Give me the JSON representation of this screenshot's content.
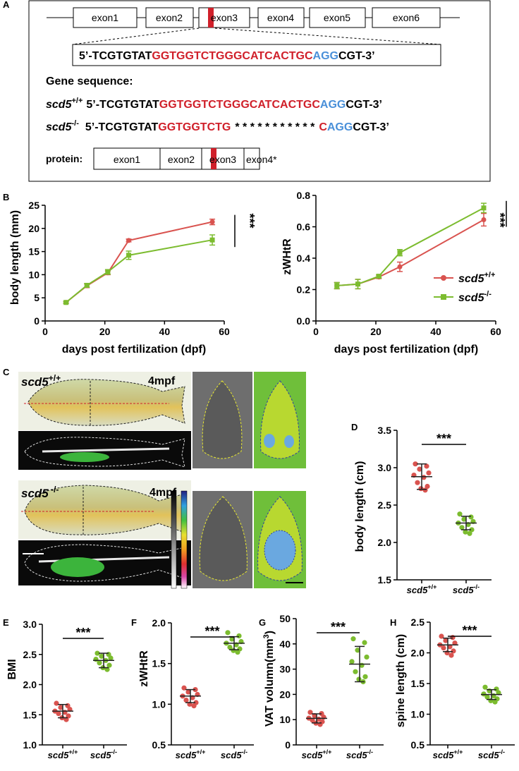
{
  "colors": {
    "wt": "#d9534f",
    "ko": "#7cbc2f",
    "guide_red": "#d0202a",
    "pam_blue": "#4a90d9",
    "exon3_mark": "#d0202a"
  },
  "panelA": {
    "label": "A",
    "exons": [
      "exon1",
      "exon2",
      "exon3",
      "exon4",
      "exon5",
      "exon6"
    ],
    "top_seq": {
      "prefix": "5’-TCGTGTAT",
      "red": "GGTGGTCTGGGCATCACTGC",
      "blue": "AGG",
      "suffix": "CGT-3’"
    },
    "gene_seq_title": "Gene sequence:",
    "wt_label": "scd5",
    "wt_sup": "+/+",
    "ko_label": "scd5",
    "ko_sup": "-/-",
    "wt_seq": {
      "prefix": "5’-TCGTGTAT",
      "red": "GGTGGTCTGGGCATCACTGC",
      "blue": "AGG",
      "suffix": "CGT-3’"
    },
    "ko_seq": {
      "prefix": "5’-TCGTGTAT",
      "red": "GGTGGTCTG",
      "gap": "* * * * * * * * * * *",
      "red2": "C",
      "blue": "AGG",
      "suffix": "CGT-3’"
    },
    "protein_label": "protein:",
    "protein_exons": [
      "exon1",
      "exon2",
      "exon3",
      "exon4*"
    ]
  },
  "panelC": {
    "label": "C",
    "wt_title": "scd5",
    "wt_sup": "+/+",
    "ko_title": "scd5",
    "ko_sup": " -/-",
    "age_wt": "4mpf",
    "age_ko": "4mpf"
  },
  "chart_data": [
    {
      "panel": "B-left",
      "label": "B",
      "type": "line",
      "xlabel": "days post fertilization (dpf)",
      "ylabel": "body length (mm)",
      "xlim": [
        0,
        60
      ],
      "ylim": [
        0,
        25
      ],
      "xticks": [
        0,
        20,
        40,
        60
      ],
      "yticks": [
        0,
        5,
        10,
        15,
        20,
        25
      ],
      "x": [
        7,
        14,
        21,
        28,
        56
      ],
      "series": [
        {
          "key": "wt",
          "values": [
            4.0,
            7.6,
            10.4,
            17.4,
            21.4
          ],
          "err": [
            0.2,
            0.4,
            0.4,
            0.3,
            0.6
          ]
        },
        {
          "key": "ko",
          "values": [
            4.0,
            7.7,
            10.6,
            14.2,
            17.5
          ],
          "err": [
            0.2,
            0.4,
            0.5,
            0.9,
            1.1
          ]
        }
      ],
      "significance": "***"
    },
    {
      "panel": "B-right",
      "type": "line",
      "xlabel": "days post fertilization (dpf)",
      "ylabel": "zWHtR",
      "xlim": [
        0,
        60
      ],
      "ylim": [
        0.0,
        0.8
      ],
      "xticks": [
        0,
        20,
        40,
        60
      ],
      "yticks": [
        "0.0",
        "0.2",
        "0.4",
        "0.6",
        "0.8"
      ],
      "x": [
        7,
        14,
        21,
        28,
        56
      ],
      "series": [
        {
          "key": "wt",
          "name": "scd5",
          "sup": "+/+",
          "values": [
            0.225,
            0.235,
            0.28,
            0.345,
            0.645
          ],
          "err": [
            0.02,
            0.03,
            0.01,
            0.03,
            0.04
          ]
        },
        {
          "key": "ko",
          "name": "scd5",
          "sup": "-/-",
          "values": [
            0.225,
            0.235,
            0.285,
            0.435,
            0.72
          ],
          "err": [
            0.02,
            0.03,
            0.01,
            0.02,
            0.03
          ]
        }
      ],
      "legend": "right",
      "significance": "***"
    },
    {
      "panel": "D",
      "label": "D",
      "type": "scatter",
      "ylabel": "body length (cm)",
      "ylim": [
        1.5,
        3.5
      ],
      "yticks": [
        "1.5",
        "2.0",
        "2.5",
        "3.0",
        "3.5"
      ],
      "categories": [
        {
          "name": "scd5",
          "sup": "+/+"
        },
        {
          "name": "scd5",
          "sup": "-/-"
        }
      ],
      "groups": [
        {
          "key": "wt",
          "mean": 2.88,
          "sd": 0.17,
          "points": [
            3.05,
            3.02,
            2.98,
            2.93,
            2.9,
            2.87,
            2.8,
            2.75,
            2.72,
            2.7
          ]
        },
        {
          "key": "ko",
          "mean": 2.26,
          "sd": 0.09,
          "points": [
            2.38,
            2.34,
            2.31,
            2.28,
            2.26,
            2.24,
            2.2,
            2.17,
            2.14,
            2.12
          ]
        }
      ],
      "significance": "***"
    },
    {
      "panel": "E",
      "label": "E",
      "type": "scatter",
      "ylabel": "BMI",
      "ylim": [
        1.0,
        3.0
      ],
      "yticks": [
        "1.0",
        "1.5",
        "2.0",
        "2.5",
        "3.0"
      ],
      "categories": [
        {
          "name": "scd5",
          "sup": "+/+"
        },
        {
          "name": "scd5",
          "sup": "-/-"
        }
      ],
      "groups": [
        {
          "key": "wt",
          "mean": 1.56,
          "sd": 0.11,
          "points": [
            1.69,
            1.65,
            1.62,
            1.59,
            1.56,
            1.54,
            1.52,
            1.48,
            1.45,
            1.42
          ]
        },
        {
          "key": "ko",
          "mean": 2.4,
          "sd": 0.12,
          "points": [
            2.52,
            2.5,
            2.47,
            2.44,
            2.42,
            2.4,
            2.36,
            2.32,
            2.28,
            2.25
          ]
        }
      ],
      "significance": "***"
    },
    {
      "panel": "F",
      "label": "F",
      "type": "scatter",
      "ylabel": "zWHtR",
      "ylim": [
        0.5,
        2.0
      ],
      "yticks": [
        "0.5",
        "1.0",
        "1.5",
        "2.0"
      ],
      "categories": [
        {
          "name": "scd5",
          "sup": "+/+"
        },
        {
          "name": "scd5",
          "sup": "-/-"
        }
      ],
      "groups": [
        {
          "key": "wt",
          "mean": 1.1,
          "sd": 0.08,
          "points": [
            1.2,
            1.18,
            1.15,
            1.12,
            1.1,
            1.08,
            1.05,
            1.02,
            1.0,
            0.98
          ]
        },
        {
          "key": "ko",
          "mean": 1.75,
          "sd": 0.08,
          "points": [
            1.88,
            1.84,
            1.8,
            1.77,
            1.75,
            1.73,
            1.7,
            1.68,
            1.66,
            1.64
          ]
        }
      ],
      "significance": "***"
    },
    {
      "panel": "G",
      "label": "G",
      "type": "scatter",
      "ylabel": "VAT  volumn(mm",
      "ylabel_sup": "3",
      "ylabel_end": ")",
      "ylim": [
        0,
        50
      ],
      "yticks": [
        "0",
        "10",
        "20",
        "30",
        "40",
        "50"
      ],
      "categories": [
        {
          "name": "scd5",
          "sup": "+/+"
        },
        {
          "name": "scd5",
          "sup": "-/-"
        }
      ],
      "groups": [
        {
          "key": "wt",
          "mean": 10.5,
          "sd": 1.8,
          "points": [
            12.9,
            12.4,
            11.6,
            11.0,
            10.6,
            10.2,
            9.8,
            9.2,
            8.6,
            8.1
          ]
        },
        {
          "key": "ko",
          "mean": 32.0,
          "sd": 7.0,
          "points": [
            42.0,
            40.5,
            37.5,
            34.8,
            33.0,
            31.5,
            29.0,
            27.0,
            26.0,
            25.0
          ]
        }
      ],
      "significance": "***"
    },
    {
      "panel": "H",
      "label": "H",
      "type": "scatter",
      "ylabel": "spine length (cm)",
      "ylim": [
        0.5,
        2.5
      ],
      "yticks": [
        "0.5",
        "1.0",
        "1.5",
        "2.0",
        "2.5"
      ],
      "categories": [
        {
          "name": "scd5",
          "sup": "+/+"
        },
        {
          "name": "scd5",
          "sup": "-/-"
        }
      ],
      "groups": [
        {
          "key": "wt",
          "mean": 2.13,
          "sd": 0.11,
          "points": [
            2.27,
            2.25,
            2.2,
            2.16,
            2.13,
            2.1,
            2.08,
            2.03,
            2.0,
            1.96
          ]
        },
        {
          "key": "ko",
          "mean": 1.32,
          "sd": 0.08,
          "points": [
            1.44,
            1.41,
            1.38,
            1.35,
            1.33,
            1.3,
            1.28,
            1.25,
            1.22,
            1.2
          ]
        }
      ],
      "significance": "***"
    }
  ]
}
